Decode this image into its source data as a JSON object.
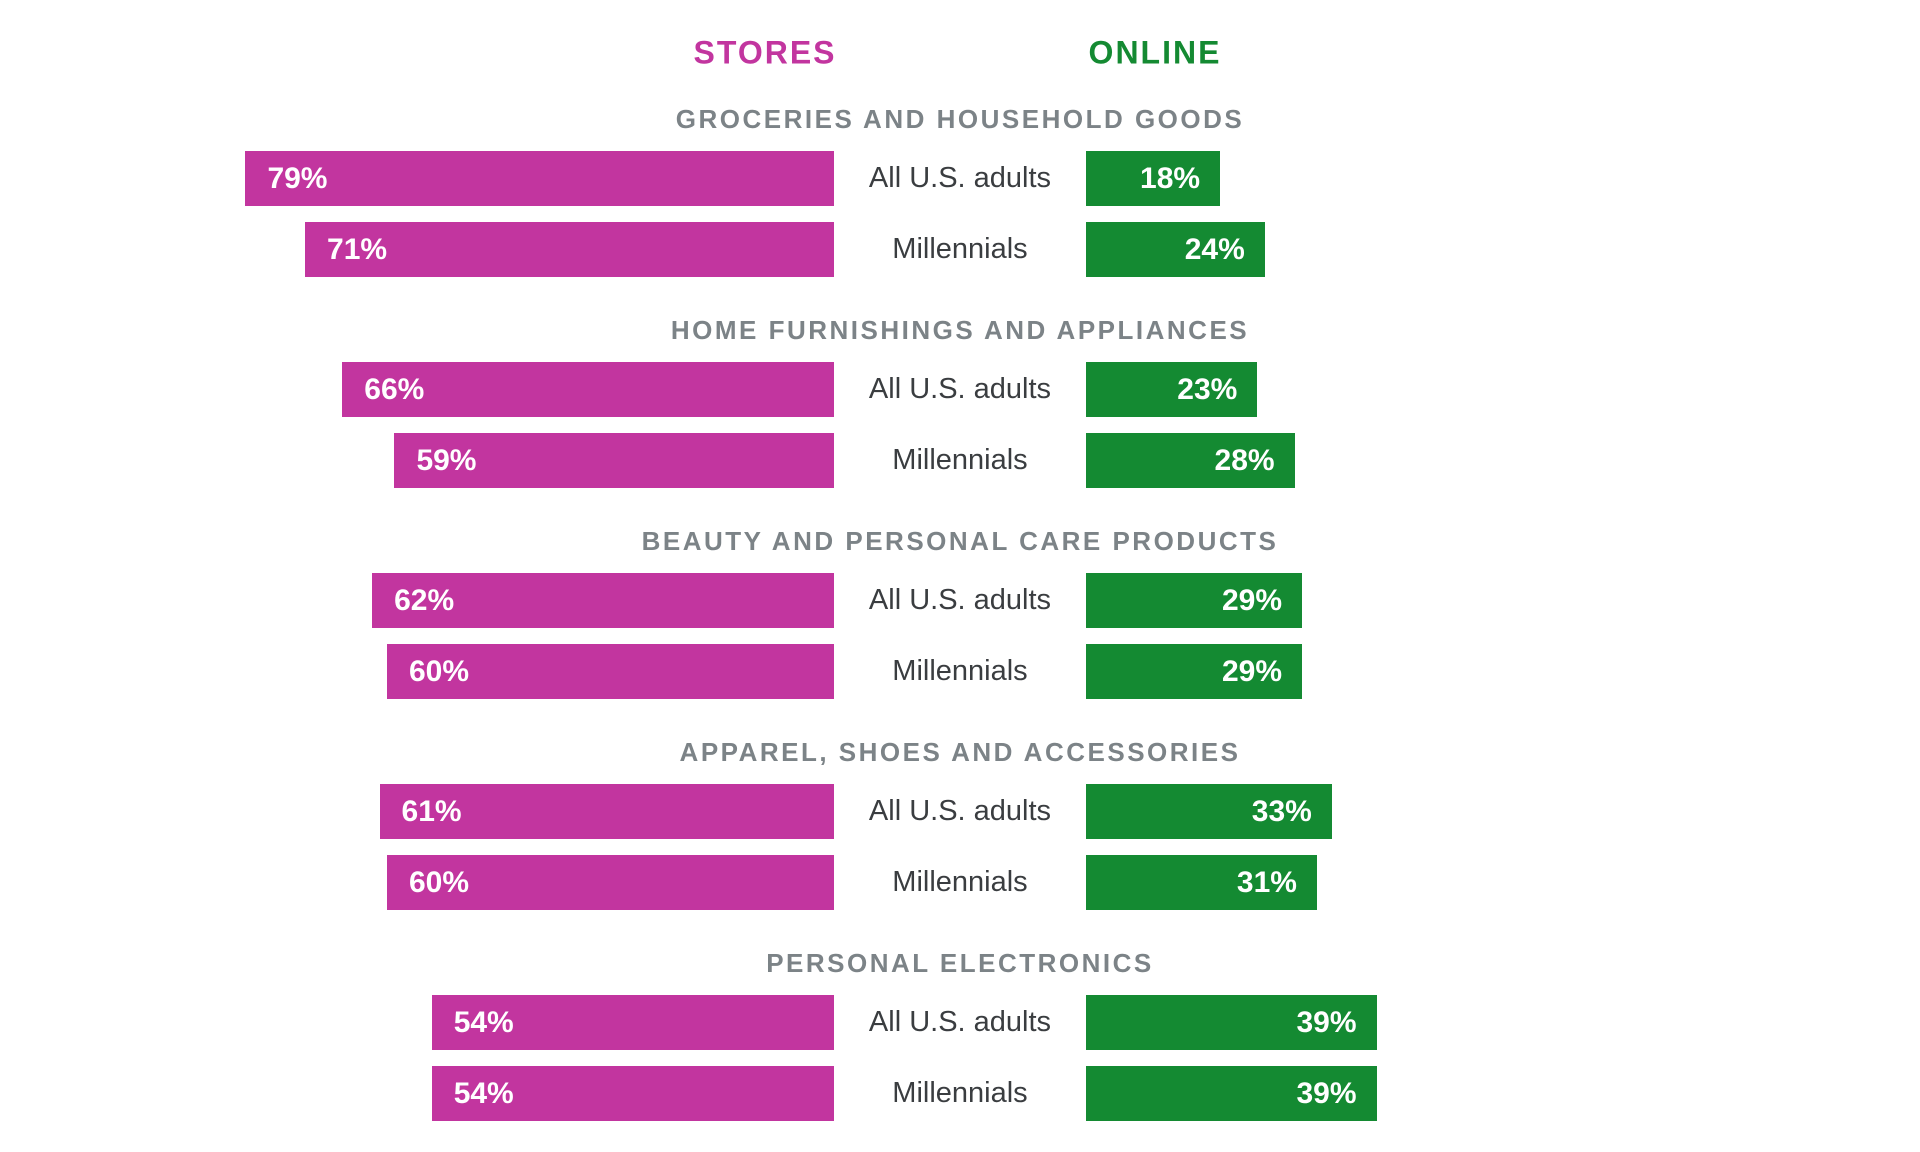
{
  "chart_data": {
    "type": "bar",
    "orientation": "horizontal-paired",
    "unit": "%",
    "axis_max": 100,
    "legend": {
      "stores": "STORES",
      "online": "ONLINE"
    },
    "legend_position": "top",
    "grid": false,
    "colors": {
      "stores": "#C2359F",
      "online": "#148A32",
      "category_header": "#7C8387",
      "row_label": "#3A3D40",
      "value_label": "#FFFFFF"
    },
    "groups": [
      {
        "category": "GROCERIES AND HOUSEHOLD GOODS",
        "rows": [
          {
            "label": "All U.S. adults",
            "stores": 79,
            "online": 18
          },
          {
            "label": "Millennials",
            "stores": 71,
            "online": 24
          }
        ]
      },
      {
        "category": "HOME FURNISHINGS AND APPLIANCES",
        "rows": [
          {
            "label": "All U.S. adults",
            "stores": 66,
            "online": 23
          },
          {
            "label": "Millennials",
            "stores": 59,
            "online": 28
          }
        ]
      },
      {
        "category": "BEAUTY AND PERSONAL CARE PRODUCTS",
        "rows": [
          {
            "label": "All U.S. adults",
            "stores": 62,
            "online": 29
          },
          {
            "label": "Millennials",
            "stores": 60,
            "online": 29
          }
        ]
      },
      {
        "category": "APPAREL, SHOES AND ACCESSORIES",
        "rows": [
          {
            "label": "All U.S. adults",
            "stores": 61,
            "online": 33
          },
          {
            "label": "Millennials",
            "stores": 60,
            "online": 31
          }
        ]
      },
      {
        "category": "PERSONAL ELECTRONICS",
        "rows": [
          {
            "label": "All U.S. adults",
            "stores": 54,
            "online": 39
          },
          {
            "label": "Millennials",
            "stores": 54,
            "online": 39
          }
        ]
      }
    ]
  }
}
